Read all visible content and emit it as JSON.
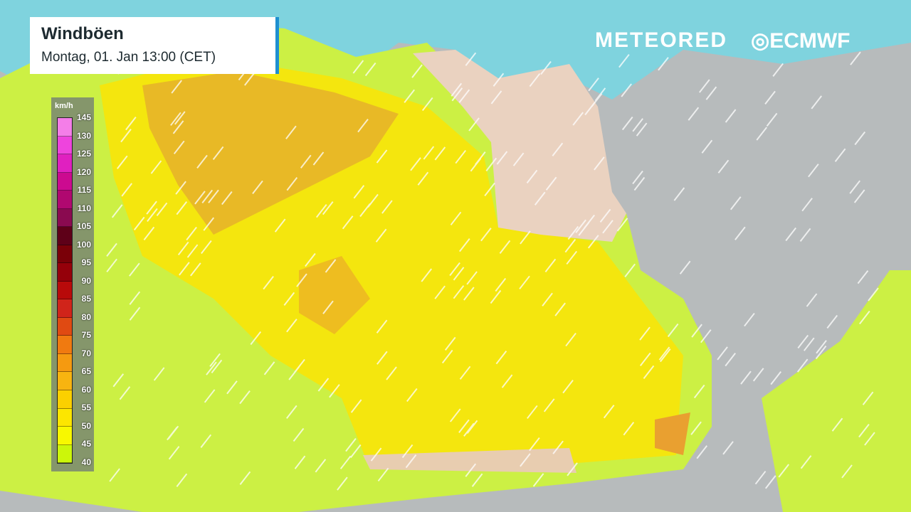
{
  "header": {
    "title": "Windböen",
    "subtitle": "Montag, 01. Jan 13:00 (CET)"
  },
  "legend": {
    "unit": "km/h",
    "labels": [
      "145",
      "130",
      "125",
      "120",
      "115",
      "110",
      "105",
      "100",
      "95",
      "90",
      "85",
      "80",
      "75",
      "70",
      "65",
      "60",
      "55",
      "50",
      "45",
      "40"
    ],
    "colors": [
      "#f47ee8",
      "#ee44dd",
      "#e020c0",
      "#cc0a90",
      "#b00870",
      "#8a0a50",
      "#5e0018",
      "#7a0008",
      "#95000a",
      "#b80a0a",
      "#d0241a",
      "#e04a12",
      "#f07a10",
      "#f59a10",
      "#f8b410",
      "#fbd000",
      "#fce600",
      "#f8f800",
      "#ccf60a"
    ]
  },
  "logos": {
    "meteored": "METEORED",
    "ecmwf": "ECMWF"
  },
  "colors": {
    "sea": "#7fd3de",
    "land": "#b7bbbc",
    "germany_east": "#ead2c0"
  }
}
